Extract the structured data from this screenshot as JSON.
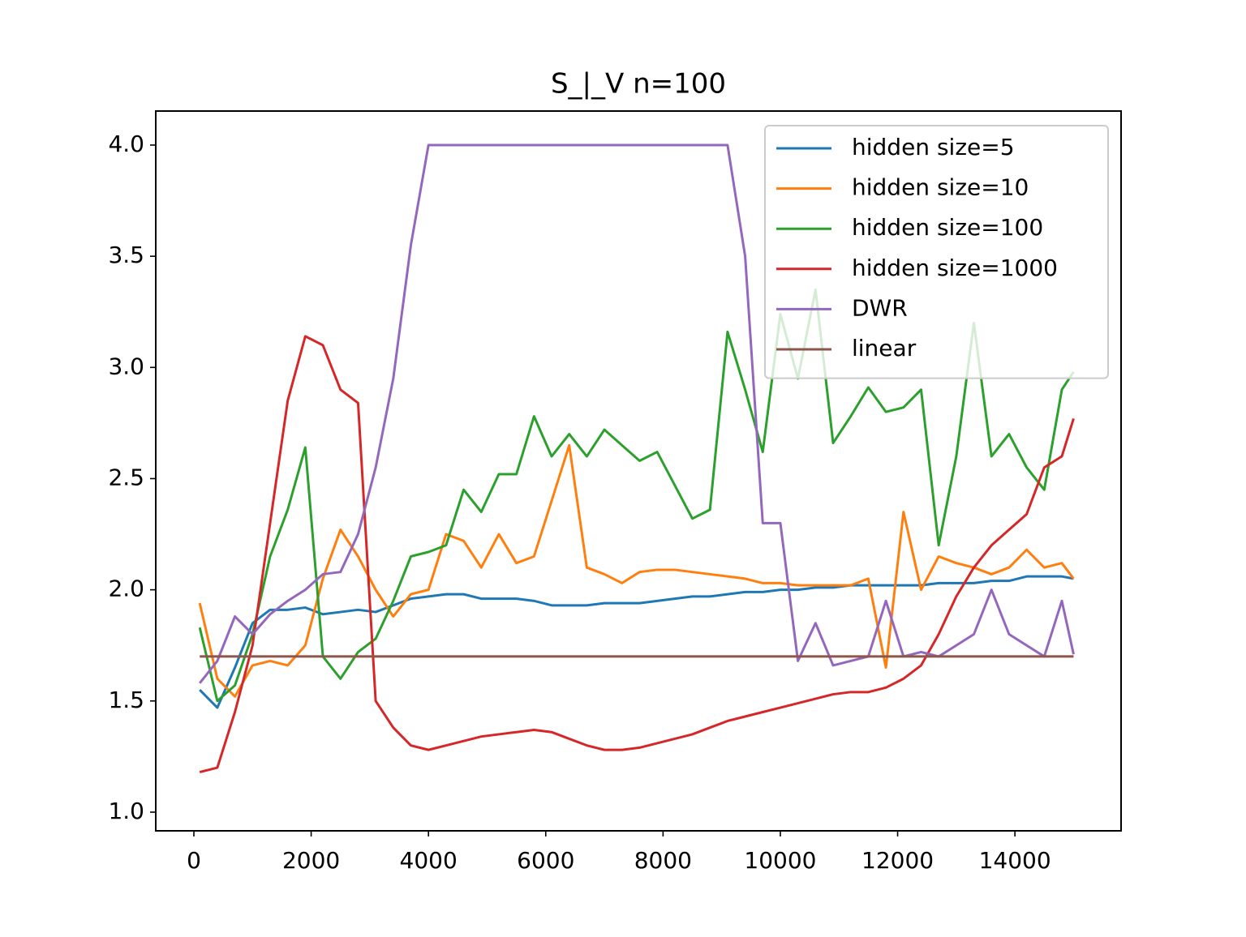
{
  "chart_data": {
    "type": "line",
    "title": "S_|_V n=100",
    "x": [
      100,
      400,
      700,
      1000,
      1300,
      1600,
      1900,
      2200,
      2500,
      2800,
      3100,
      3400,
      3700,
      4000,
      4300,
      4600,
      4900,
      5200,
      5500,
      5800,
      6100,
      6400,
      6700,
      7000,
      7300,
      7600,
      7900,
      8200,
      8500,
      8800,
      9100,
      9400,
      9700,
      10000,
      10300,
      10600,
      10900,
      11200,
      11500,
      11800,
      12100,
      12400,
      12700,
      13000,
      13300,
      13600,
      13900,
      14200,
      14500,
      14800,
      15000
    ],
    "series": [
      {
        "name": "hidden size=5",
        "color": "#1f77b4",
        "values": [
          1.55,
          1.47,
          1.65,
          1.85,
          1.91,
          1.91,
          1.92,
          1.89,
          1.9,
          1.91,
          1.9,
          1.93,
          1.96,
          1.97,
          1.98,
          1.98,
          1.96,
          1.96,
          1.96,
          1.95,
          1.93,
          1.93,
          1.93,
          1.94,
          1.94,
          1.94,
          1.95,
          1.96,
          1.97,
          1.97,
          1.98,
          1.99,
          1.99,
          2.0,
          2.0,
          2.01,
          2.01,
          2.02,
          2.02,
          2.02,
          2.02,
          2.02,
          2.03,
          2.03,
          2.03,
          2.04,
          2.04,
          2.06,
          2.06,
          2.06,
          2.05
        ]
      },
      {
        "name": "hidden size=10",
        "color": "#ff7f0e",
        "values": [
          1.94,
          1.6,
          1.52,
          1.66,
          1.68,
          1.66,
          1.75,
          2.05,
          2.27,
          2.15,
          2.0,
          1.88,
          1.98,
          2.0,
          2.25,
          2.22,
          2.1,
          2.25,
          2.12,
          2.15,
          2.4,
          2.65,
          2.1,
          2.07,
          2.03,
          2.08,
          2.09,
          2.09,
          2.08,
          2.07,
          2.06,
          2.05,
          2.03,
          2.03,
          2.02,
          2.02,
          2.02,
          2.02,
          2.05,
          1.65,
          2.35,
          2.0,
          2.15,
          2.12,
          2.1,
          2.07,
          2.1,
          2.18,
          2.1,
          2.12,
          2.05
        ]
      },
      {
        "name": "hidden size=100",
        "color": "#2ca02c",
        "values": [
          1.83,
          1.5,
          1.57,
          1.8,
          2.15,
          2.36,
          2.64,
          1.7,
          1.6,
          1.72,
          1.78,
          1.95,
          2.15,
          2.17,
          2.2,
          2.45,
          2.35,
          2.52,
          2.52,
          2.78,
          2.6,
          2.7,
          2.6,
          2.72,
          2.65,
          2.58,
          2.62,
          2.47,
          2.32,
          2.36,
          3.16,
          2.9,
          2.62,
          3.24,
          2.95,
          3.35,
          2.66,
          2.78,
          2.91,
          2.8,
          2.82,
          2.9,
          2.2,
          2.6,
          3.2,
          2.6,
          2.7,
          2.55,
          2.45,
          2.9,
          2.98
        ]
      },
      {
        "name": "hidden size=1000",
        "color": "#d62728",
        "values": [
          1.18,
          1.2,
          1.45,
          1.75,
          2.3,
          2.85,
          3.14,
          3.1,
          2.9,
          2.84,
          1.5,
          1.38,
          1.3,
          1.28,
          1.3,
          1.32,
          1.34,
          1.35,
          1.36,
          1.37,
          1.36,
          1.33,
          1.3,
          1.28,
          1.28,
          1.29,
          1.31,
          1.33,
          1.35,
          1.38,
          1.41,
          1.43,
          1.45,
          1.47,
          1.49,
          1.51,
          1.53,
          1.54,
          1.54,
          1.56,
          1.6,
          1.66,
          1.8,
          1.97,
          2.1,
          2.2,
          2.27,
          2.34,
          2.55,
          2.6,
          2.77
        ]
      },
      {
        "name": "DWR",
        "color": "#9467bd",
        "values": [
          1.58,
          1.68,
          1.88,
          1.8,
          1.89,
          1.95,
          2.0,
          2.07,
          2.08,
          2.25,
          2.55,
          2.95,
          3.55,
          4.0,
          4.0,
          4.0,
          4.0,
          4.0,
          4.0,
          4.0,
          4.0,
          4.0,
          4.0,
          4.0,
          4.0,
          4.0,
          4.0,
          4.0,
          4.0,
          4.0,
          4.0,
          3.5,
          2.3,
          2.3,
          1.68,
          1.85,
          1.66,
          1.68,
          1.7,
          1.95,
          1.7,
          1.72,
          1.7,
          1.75,
          1.8,
          2.0,
          1.8,
          1.75,
          1.7,
          1.95,
          1.71
        ]
      },
      {
        "name": "linear",
        "color": "#8c564b",
        "values": [
          1.7,
          1.7,
          1.7,
          1.7,
          1.7,
          1.7,
          1.7,
          1.7,
          1.7,
          1.7,
          1.7,
          1.7,
          1.7,
          1.7,
          1.7,
          1.7,
          1.7,
          1.7,
          1.7,
          1.7,
          1.7,
          1.7,
          1.7,
          1.7,
          1.7,
          1.7,
          1.7,
          1.7,
          1.7,
          1.7,
          1.7,
          1.7,
          1.7,
          1.7,
          1.7,
          1.7,
          1.7,
          1.7,
          1.7,
          1.7,
          1.7,
          1.7,
          1.7,
          1.7,
          1.7,
          1.7,
          1.7,
          1.7,
          1.7,
          1.7,
          1.7
        ]
      }
    ],
    "xlim": [
      -650,
      15810
    ],
    "ylim": [
      0.916,
      4.153
    ],
    "xticks": [
      0,
      2000,
      4000,
      6000,
      8000,
      10000,
      12000,
      14000
    ],
    "yticks": [
      {
        "value": 1,
        "label": "1.0"
      },
      1.5,
      {
        "value": 2,
        "label": "2.0"
      },
      2.5,
      {
        "value": 3,
        "label": "3.0"
      },
      3.5,
      {
        "value": 4,
        "label": "4.0"
      }
    ],
    "legend": "upper right"
  }
}
